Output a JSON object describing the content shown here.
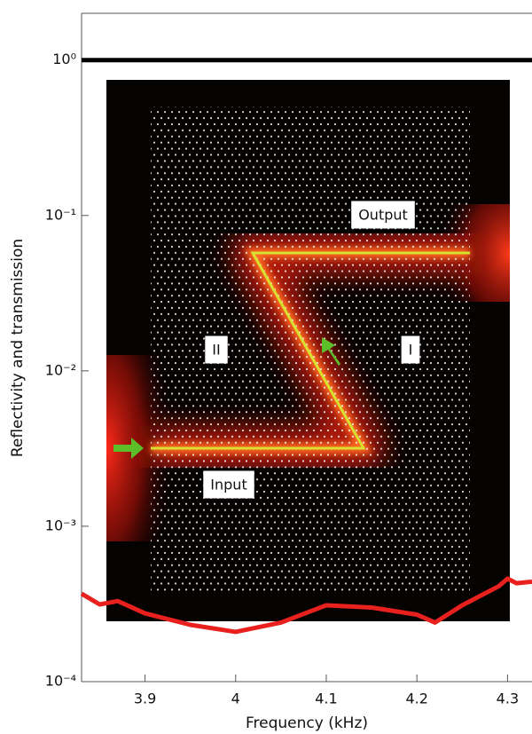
{
  "chart_data": {
    "type": "line",
    "xlabel": "Frequency (kHz)",
    "ylabel": "Reflectivity and transmission",
    "xlim": [
      3.83,
      4.327
    ],
    "ylim": [
      0.0001,
      2
    ],
    "log_y": true,
    "xticks": [
      3.9,
      4.0,
      4.1,
      4.2,
      4.3
    ],
    "yticks": [
      {
        "value": 1,
        "label": "10⁰"
      },
      {
        "value": 0.1,
        "label": "10⁻¹"
      },
      {
        "value": 0.01,
        "label": "10⁻²"
      },
      {
        "value": 0.001,
        "label": "10⁻³"
      },
      {
        "value": 0.0001,
        "label": "10⁻⁴"
      }
    ],
    "series": [
      {
        "color": "#000000",
        "x": [
          3.83,
          4.327
        ],
        "values": [
          1,
          1
        ]
      },
      {
        "color": "#e8201e",
        "x": [
          3.83,
          3.85,
          3.87,
          3.9,
          3.95,
          4.0,
          4.05,
          4.1,
          4.15,
          4.2,
          4.22,
          4.25,
          4.29,
          4.3,
          4.31,
          4.327
        ],
        "values": [
          0.000368,
          0.000314,
          0.00033,
          0.000275,
          0.000232,
          0.000209,
          0.00024,
          0.00031,
          0.0003,
          0.00027,
          0.00024,
          0.00031,
          0.00041,
          0.00046,
          0.00043,
          0.00044
        ]
      }
    ],
    "annotations": [
      "Output",
      "II",
      "I",
      "Input"
    ]
  }
}
